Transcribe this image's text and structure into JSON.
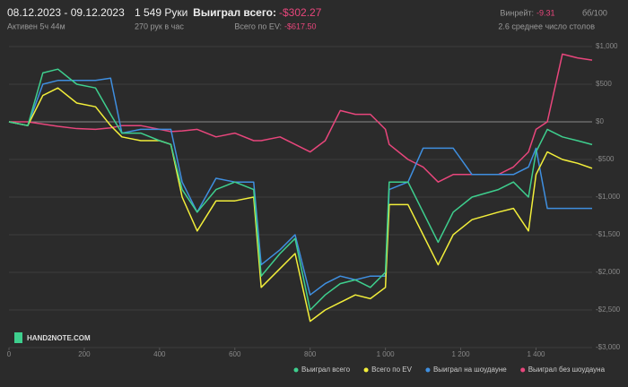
{
  "header": {
    "dates": "08.12.2023 - 09.12.2023",
    "active": "Активен 5ч 44м",
    "hands": "1 549 Руки",
    "rate": "270 рук в час",
    "won_label": "Выиграл всего:",
    "won_value": "-$302.27",
    "ev_label": "Всего по EV:",
    "ev_value": "-$617.50",
    "winrate_label": "Винрейт:",
    "winrate_value": "-9.31",
    "winrate_unit": "бб/100",
    "tables": "2.6 среднее число столов",
    "logo": "HAND2NOTE.COM"
  },
  "chart_data": {
    "type": "line",
    "x": [
      0,
      50,
      90,
      130,
      180,
      230,
      270,
      300,
      350,
      400,
      430,
      460,
      500,
      550,
      600,
      650,
      670,
      720,
      760,
      800,
      840,
      880,
      920,
      960,
      1000,
      1010,
      1060,
      1100,
      1140,
      1180,
      1230,
      1300,
      1340,
      1380,
      1400,
      1430,
      1470,
      1510,
      1549
    ],
    "series": [
      {
        "name": "Выиграл всего",
        "color": "#3ecf8e",
        "values": [
          0,
          -50,
          650,
          700,
          500,
          450,
          100,
          -150,
          -150,
          -250,
          -300,
          -900,
          -1200,
          -900,
          -800,
          -900,
          -2050,
          -1750,
          -1550,
          -2500,
          -2300,
          -2150,
          -2100,
          -2200,
          -2000,
          -800,
          -800,
          -1200,
          -1600,
          -1200,
          -1000,
          -900,
          -800,
          -1000,
          -400,
          -100,
          -200,
          -250,
          -302.27
        ]
      },
      {
        "name": "Всего по EV",
        "color": "#f2ee3a",
        "values": [
          0,
          -50,
          350,
          450,
          250,
          200,
          -50,
          -200,
          -250,
          -250,
          -300,
          -1000,
          -1450,
          -1050,
          -1050,
          -1000,
          -2200,
          -1950,
          -1750,
          -2650,
          -2500,
          -2400,
          -2300,
          -2350,
          -2200,
          -1100,
          -1100,
          -1500,
          -1900,
          -1500,
          -1300,
          -1200,
          -1150,
          -1450,
          -700,
          -400,
          -500,
          -550,
          -617.5
        ]
      },
      {
        "name": "Выиграл на шоудауне",
        "color": "#3f8fe0",
        "values": [
          0,
          -50,
          500,
          550,
          550,
          550,
          580,
          -150,
          -100,
          -100,
          -100,
          -800,
          -1200,
          -750,
          -800,
          -800,
          -1900,
          -1700,
          -1500,
          -2300,
          -2150,
          -2050,
          -2100,
          -2050,
          -2050,
          -900,
          -800,
          -350,
          -350,
          -350,
          -700,
          -700,
          -700,
          -600,
          -350,
          -1150,
          -1150,
          -1150,
          -1150
        ]
      },
      {
        "name": "Выиграл без шоудауна",
        "color": "#e8467c",
        "values": [
          0,
          0,
          -30,
          -60,
          -90,
          -100,
          -80,
          -50,
          -50,
          -100,
          -130,
          -120,
          -100,
          -200,
          -150,
          -250,
          -250,
          -200,
          -300,
          -400,
          -250,
          150,
          100,
          100,
          -100,
          -300,
          -500,
          -600,
          -800,
          -700,
          -700,
          -700,
          -600,
          -400,
          -100,
          0,
          900,
          850,
          820
        ]
      }
    ],
    "xlim": [
      0,
      1549
    ],
    "ylim": [
      -3000,
      1000
    ],
    "xticks": [
      0,
      200,
      400,
      600,
      800,
      {
        "value": 1000,
        "label": "1 000"
      },
      {
        "value": 1200,
        "label": "1 200"
      },
      {
        "value": 1400,
        "label": "1 400"
      }
    ],
    "yticks": [
      {
        "value": 1000,
        "label": "$1,000"
      },
      {
        "value": 500,
        "label": "$500"
      },
      {
        "value": 0,
        "label": "$0"
      },
      {
        "value": -500,
        "label": "-$500"
      },
      {
        "value": -1000,
        "label": "-$1,000"
      },
      {
        "value": -1500,
        "label": "-$1,500"
      },
      {
        "value": -2000,
        "label": "-$2,000"
      },
      {
        "value": -2500,
        "label": "-$2,500"
      },
      {
        "value": -3000,
        "label": "-$3,000"
      }
    ],
    "grid": true
  }
}
